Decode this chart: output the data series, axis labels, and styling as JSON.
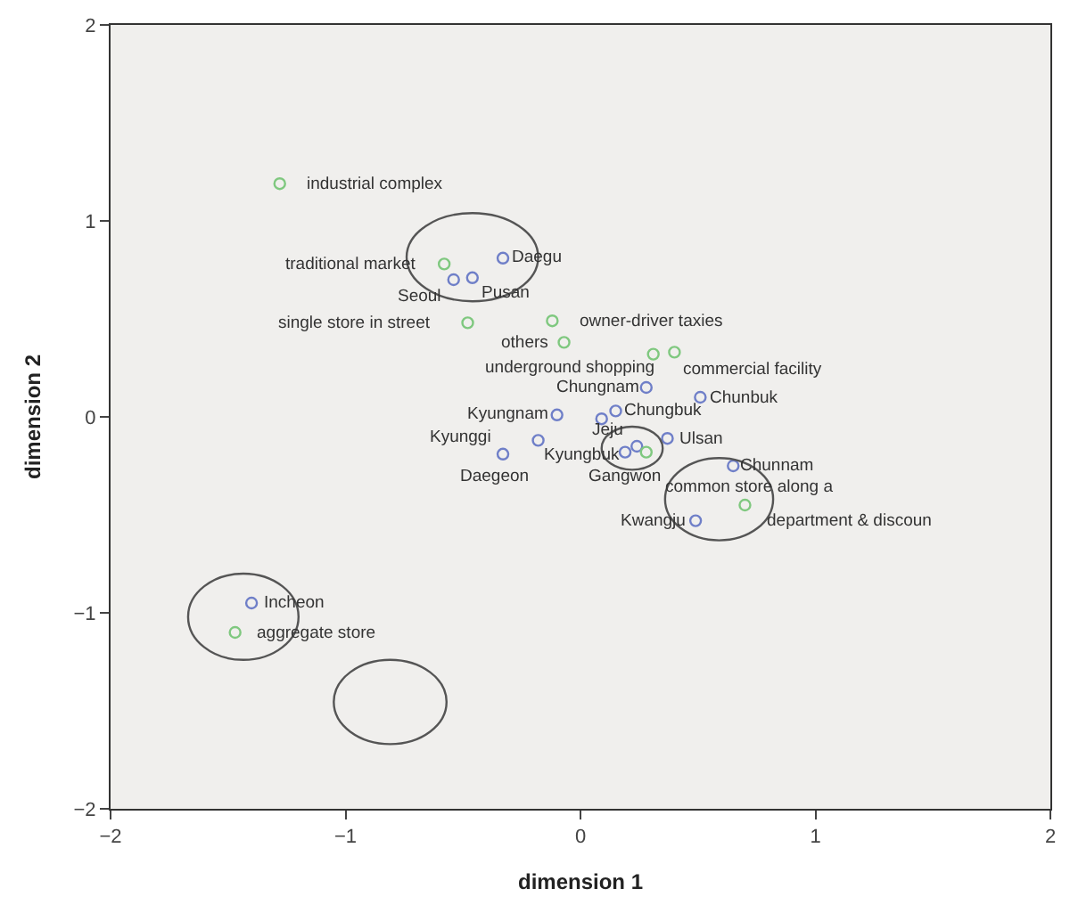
{
  "chart_data": {
    "type": "scatter",
    "xlabel": "dimension 1",
    "ylabel": "dimension 2",
    "xlim": [
      -2,
      2
    ],
    "ylim": [
      -2,
      2
    ],
    "xticks": [
      -2,
      -1,
      0,
      1,
      2
    ],
    "yticks": [
      -2,
      -1,
      0,
      1,
      2
    ],
    "grid": false,
    "legend": false,
    "marker": "circle",
    "series": [
      {
        "color": "#6f7fc8",
        "x": [
          -0.33,
          -0.46,
          -0.54,
          0.28,
          0.51,
          -0.1,
          0.09,
          0.15,
          -0.18,
          -0.33,
          0.19,
          0.24,
          0.37,
          0.65,
          0.49,
          -1.4
        ],
        "values": [
          0.81,
          0.71,
          0.7,
          0.15,
          0.1,
          0.01,
          -0.01,
          0.03,
          -0.12,
          -0.19,
          -0.18,
          -0.15,
          -0.11,
          -0.25,
          -0.53,
          -0.95
        ]
      },
      {
        "color": "#7fc87f",
        "x": [
          -1.28,
          -0.58,
          -0.48,
          -0.12,
          -0.07,
          0.31,
          0.4,
          0.28,
          0.7,
          -1.47
        ],
        "values": [
          1.19,
          0.78,
          0.48,
          0.49,
          0.38,
          0.32,
          0.33,
          -0.18,
          -0.45,
          -1.1
        ]
      }
    ],
    "annotations": [
      {
        "text": "Daegu",
        "x": -0.33,
        "y": 0.81
      },
      {
        "text": "Pusan",
        "x": -0.46,
        "y": 0.71
      },
      {
        "text": "Seoul",
        "x": -0.54,
        "y": 0.7
      },
      {
        "text": "Chungnam",
        "x": 0.28,
        "y": 0.15
      },
      {
        "text": "Chunbuk",
        "x": 0.51,
        "y": 0.1
      },
      {
        "text": "Kyungnam",
        "x": -0.1,
        "y": 0.01
      },
      {
        "text": "Kyungbuk",
        "x": 0.09,
        "y": -0.01
      },
      {
        "text": "Chungbuk",
        "x": 0.15,
        "y": 0.03
      },
      {
        "text": "Daegeon",
        "x": -0.18,
        "y": -0.12
      },
      {
        "text": "Kyunggi",
        "x": -0.33,
        "y": -0.19
      },
      {
        "text": "Gangwon",
        "x": 0.19,
        "y": -0.18
      },
      {
        "text": "Jeju",
        "x": 0.24,
        "y": -0.15
      },
      {
        "text": "Ulsan",
        "x": 0.37,
        "y": -0.11
      },
      {
        "text": "Chunnam",
        "x": 0.65,
        "y": -0.25
      },
      {
        "text": "Kwangju",
        "x": 0.49,
        "y": -0.53
      },
      {
        "text": "Incheon",
        "x": -1.4,
        "y": -0.95
      },
      {
        "text": "industrial complex",
        "x": -1.28,
        "y": 1.19
      },
      {
        "text": "traditional market",
        "x": -0.58,
        "y": 0.78
      },
      {
        "text": "single store in street",
        "x": -0.48,
        "y": 0.48
      },
      {
        "text": "owner-driver taxies",
        "x": -0.12,
        "y": 0.49
      },
      {
        "text": "others",
        "x": -0.07,
        "y": 0.38
      },
      {
        "text": "commercial facility",
        "x": 0.31,
        "y": 0.32
      },
      {
        "text": "underground shopping",
        "x": 0.4,
        "y": 0.33
      },
      {
        "text": "common store along a",
        "x": 0.28,
        "y": -0.18
      },
      {
        "text": "department & discoun",
        "x": 0.7,
        "y": -0.45
      },
      {
        "text": "aggregate store",
        "x": -1.47,
        "y": -1.1
      }
    ]
  }
}
